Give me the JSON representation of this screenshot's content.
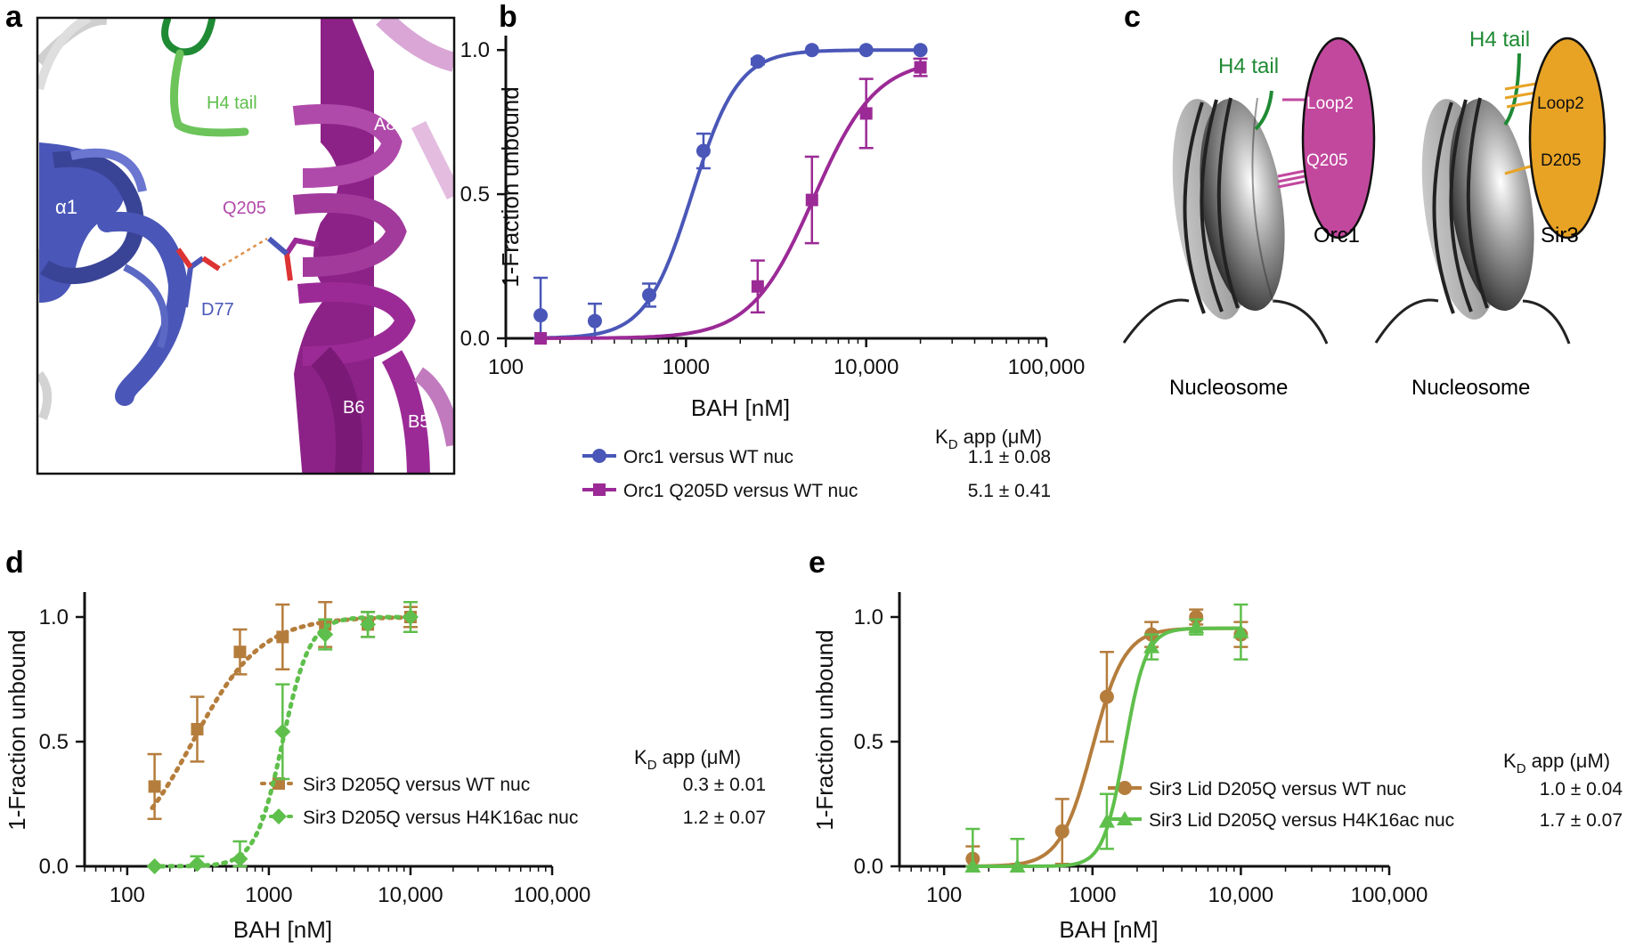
{
  "figure": {
    "panel_letters": [
      "a",
      "b",
      "c",
      "d",
      "e"
    ]
  },
  "panel_a": {
    "labels": {
      "h4_tail": "H4 tail",
      "a8": "A8",
      "q205": "Q205",
      "alpha1": "α1",
      "d77": "D77",
      "b6": "B6",
      "b5": "B5"
    },
    "colors": {
      "blue": "#4a57b8",
      "purple": "#9b2a96",
      "green": "#5fbf4c",
      "dark_green": "#1a7a2e",
      "grey": "#c8c8c8"
    }
  },
  "panel_c": {
    "left": {
      "tail": "H4 tail",
      "protein": "Orc1",
      "loop": "Loop2",
      "residue": "Q205",
      "nucleosome": "Nucleosome",
      "color": "#c2489e"
    },
    "right": {
      "tail": "H4 tail",
      "protein": "Sir3",
      "loop": "Loop2",
      "residue": "D205",
      "nucleosome": "Nucleosome",
      "color": "#e8a325"
    }
  },
  "chart_data": [
    {
      "panel": "b",
      "type": "line",
      "xscale": "log",
      "xlim": [
        100,
        100000
      ],
      "ylim": [
        0,
        1.05
      ],
      "xticks": [
        100,
        1000,
        10000,
        100000
      ],
      "xtick_labels": [
        "100",
        "1000",
        "10,000",
        "100,000"
      ],
      "yticks": [
        0,
        0.5,
        1
      ],
      "ytick_labels": [
        "0.0",
        "0.5",
        "1.0"
      ],
      "xlabel": "BAH [nM]",
      "ylabel": "1-Fraction unbound",
      "legend_header": "K",
      "legend_header_sub": "D",
      "legend_header_rest": " app (μM)",
      "series": [
        {
          "name": "Orc1 versus WT nuc",
          "kd": "1.1 ± 0.08",
          "color": "#4a57b8",
          "marker": "circle",
          "dashed": false,
          "x": [
            156,
            312,
            625,
            1250,
            2500,
            5000,
            10000,
            20000
          ],
          "y": [
            0.08,
            0.06,
            0.15,
            0.65,
            0.96,
            1.0,
            1.0,
            1.0
          ],
          "err": [
            0.13,
            0.06,
            0.04,
            0.06,
            0.01,
            0,
            0,
            0
          ],
          "fit": {
            "kd_nM": 1080,
            "hill": 3.4,
            "top": 1.0
          }
        },
        {
          "name": "Orc1 Q205D versus WT nuc",
          "kd": "5.1 ± 0.41",
          "color": "#9b2a96",
          "marker": "square",
          "dashed": false,
          "x": [
            156,
            2500,
            5000,
            10000,
            20000
          ],
          "y": [
            0.0,
            0.18,
            0.48,
            0.78,
            0.94
          ],
          "err": [
            0,
            0.09,
            0.15,
            0.12,
            0.03
          ],
          "fit": {
            "kd_nM": 5100,
            "hill": 2.5,
            "top": 0.97
          }
        }
      ]
    },
    {
      "panel": "d",
      "type": "line",
      "xscale": "log",
      "xlim": [
        50,
        100000
      ],
      "ylim": [
        0,
        1.1
      ],
      "xticks": [
        100,
        1000,
        10000,
        100000
      ],
      "xtick_labels": [
        "100",
        "1000",
        "10,000",
        "100,000"
      ],
      "yticks": [
        0,
        0.5,
        1
      ],
      "ytick_labels": [
        "0.0",
        "0.5",
        "1.0"
      ],
      "xlabel": "BAH [nM]",
      "ylabel": "1-Fraction unbound",
      "legend_header": "K",
      "legend_header_sub": "D",
      "legend_header_rest": " app (μM)",
      "series": [
        {
          "name": "Sir3 D205Q versus WT nuc",
          "kd": "0.3 ± 0.01",
          "color": "#b57d3c",
          "marker": "square",
          "dashed": true,
          "x": [
            156,
            312,
            625,
            1250,
            2500,
            5000,
            10000
          ],
          "y": [
            0.32,
            0.55,
            0.86,
            0.92,
            0.97,
            0.97,
            1.0
          ],
          "err": [
            0.13,
            0.13,
            0.09,
            0.13,
            0.09,
            0.05,
            0.04
          ],
          "fit": {
            "kd_nM": 290,
            "hill": 1.8,
            "top": 1.0
          }
        },
        {
          "name": "Sir3 D205Q versus H4K16ac nuc",
          "kd": "1.2 ± 0.07",
          "color": "#5fbf4c",
          "marker": "diamond",
          "dashed": true,
          "x": [
            156,
            312,
            625,
            1250,
            2500,
            5000,
            10000
          ],
          "y": [
            0.0,
            0.01,
            0.03,
            0.54,
            0.93,
            0.97,
            1.0
          ],
          "err": [
            0,
            0.03,
            0.07,
            0.19,
            0.06,
            0.05,
            0.06
          ],
          "fit": {
            "kd_nM": 1250,
            "hill": 4.5,
            "top": 1.0
          }
        }
      ]
    },
    {
      "panel": "e",
      "type": "line",
      "xscale": "log",
      "xlim": [
        50,
        100000
      ],
      "ylim": [
        0,
        1.1
      ],
      "xticks": [
        100,
        1000,
        10000,
        100000
      ],
      "xtick_labels": [
        "100",
        "1000",
        "10,000",
        "100,000"
      ],
      "yticks": [
        0,
        0.5,
        1
      ],
      "ytick_labels": [
        "0.0",
        "0.5",
        "1.0"
      ],
      "xlabel": "BAH [nM]",
      "ylabel": "1-Fraction unbound",
      "legend_header": "K",
      "legend_header_sub": "D",
      "legend_header_rest": " app (μM)",
      "series": [
        {
          "name": "Sir3 Lid D205Q versus WT nuc",
          "kd": "1.0 ± 0.04",
          "color": "#b57d3c",
          "marker": "circle",
          "dashed": false,
          "x": [
            156,
            625,
            1250,
            2500,
            5000,
            10000
          ],
          "y": [
            0.03,
            0.14,
            0.68,
            0.93,
            1.0,
            0.93
          ],
          "err": [
            0.05,
            0.13,
            0.18,
            0.05,
            0.03,
            0.05
          ],
          "fit": {
            "kd_nM": 1000,
            "hill": 4.0,
            "top": 0.955
          }
        },
        {
          "name": "Sir3 Lid D205Q versus H4K16ac nuc",
          "kd": "1.7 ± 0.07",
          "color": "#5fbf4c",
          "marker": "triangle",
          "dashed": false,
          "x": [
            156,
            312,
            1250,
            2500,
            5000,
            10000
          ],
          "y": [
            0.0,
            0.0,
            0.18,
            0.88,
            0.96,
            0.94
          ],
          "err": [
            0.15,
            0.11,
            0.11,
            0.05,
            0.03,
            0.11
          ],
          "fit": {
            "kd_nM": 1650,
            "hill": 6.0,
            "top": 0.955
          }
        }
      ]
    }
  ]
}
